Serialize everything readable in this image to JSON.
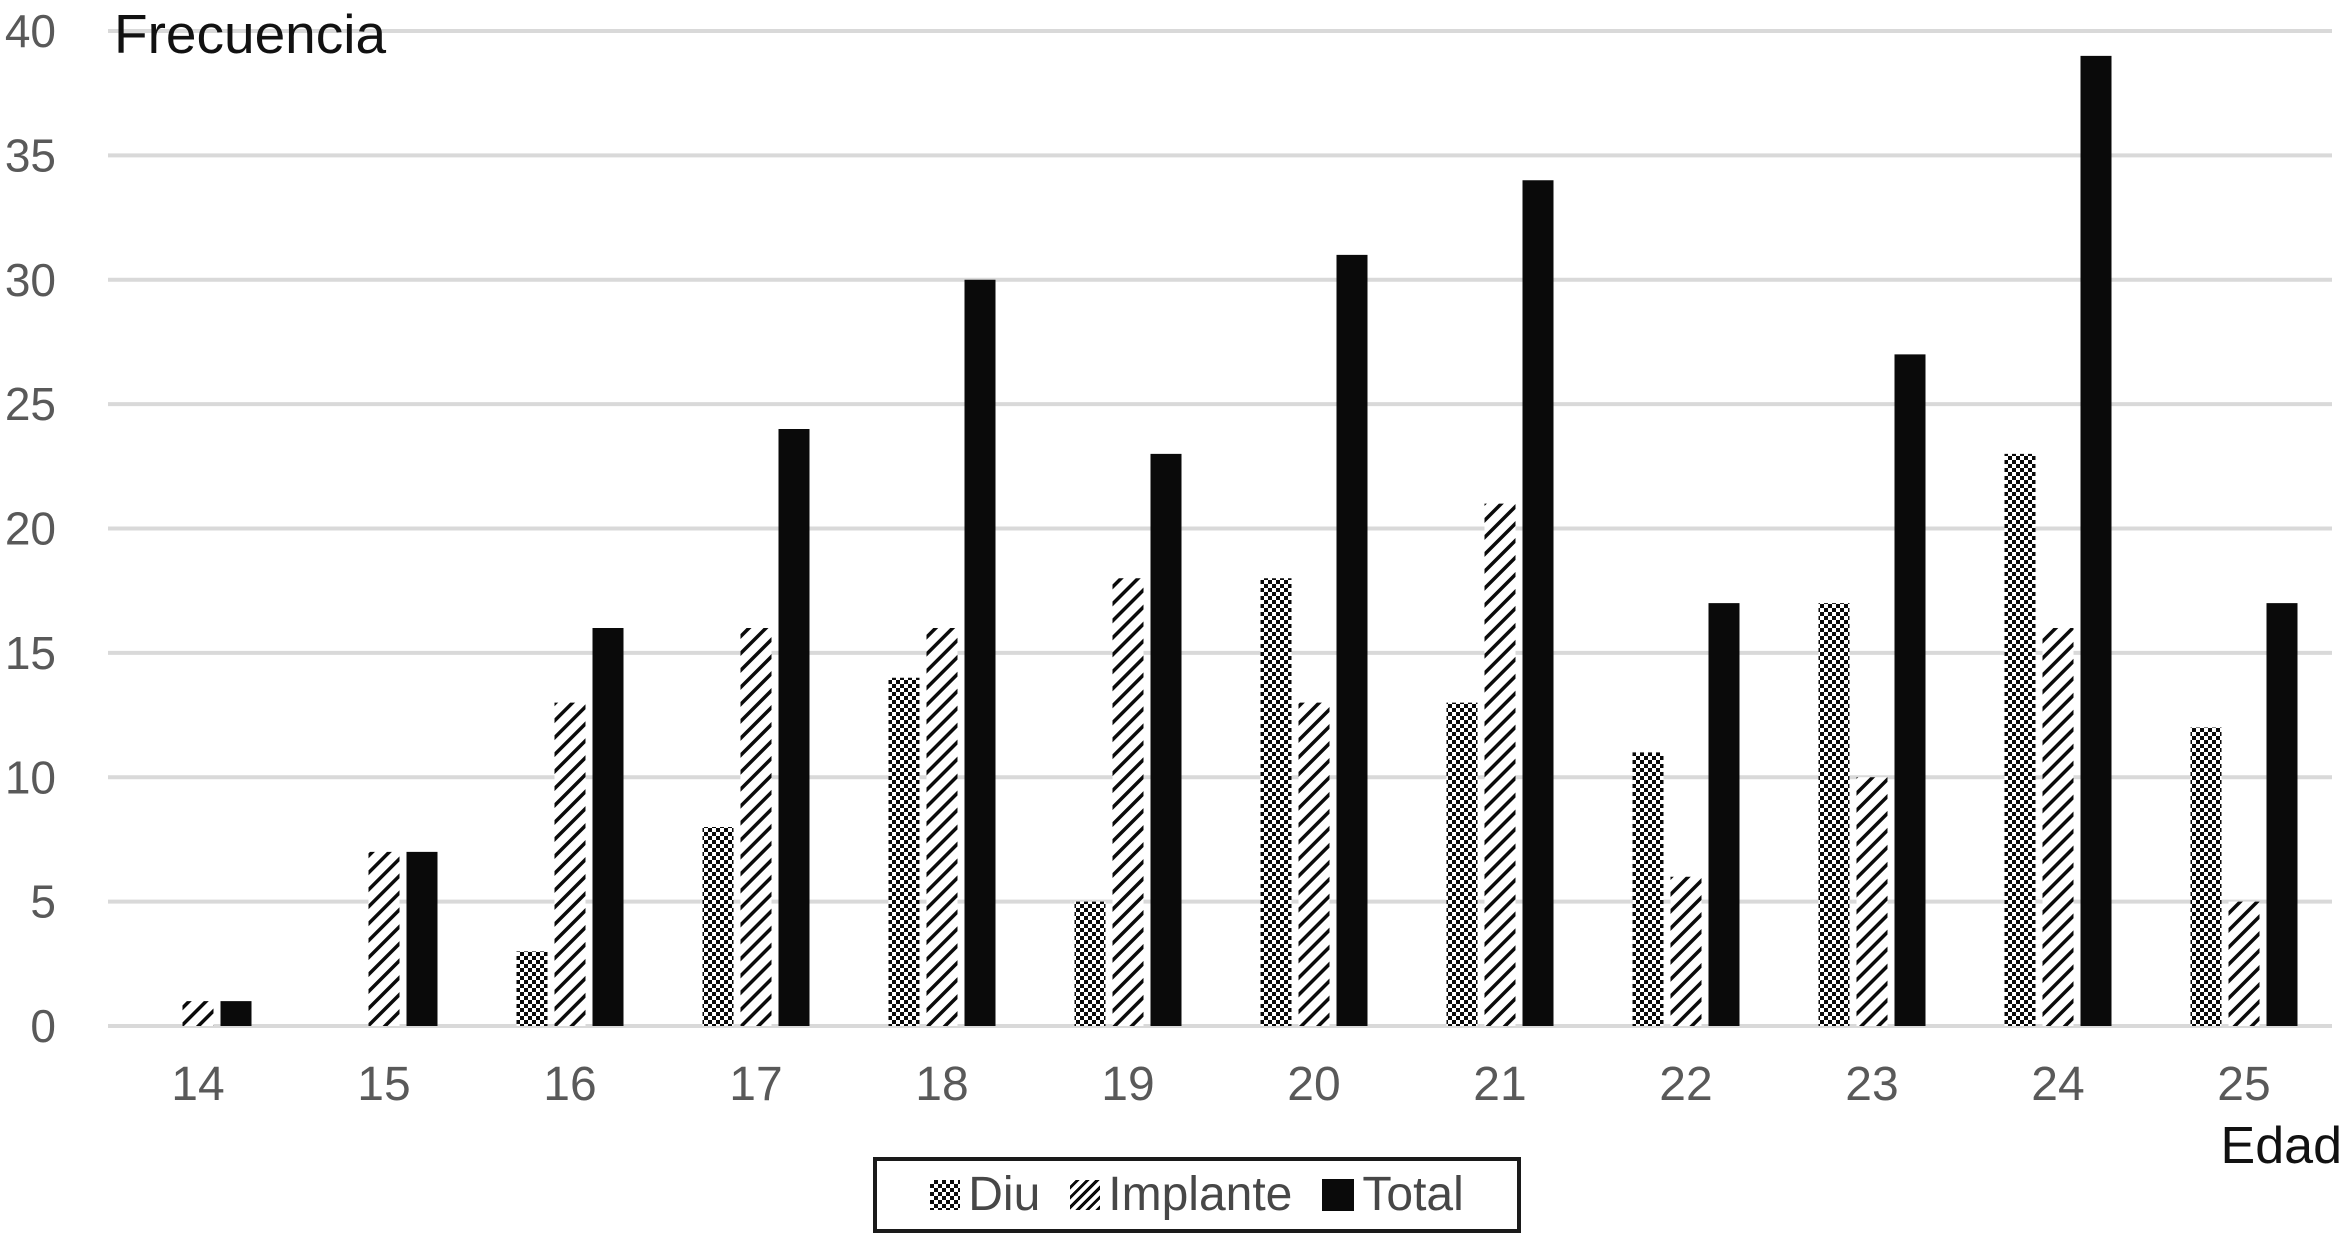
{
  "chart": {
    "title": "Frecuencia",
    "x_axis_title": "Edad"
  },
  "colors": {
    "background": "#ffffff",
    "bar_black": "#0a0a0a",
    "gridline": "#d9d9d9",
    "tick_label": "#595959",
    "title_text": "#111111",
    "legend_text": "#474747",
    "legend_border": "#1a1a1a"
  },
  "chart_data": {
    "type": "bar",
    "title": "Frecuencia",
    "xlabel": "Edad",
    "ylabel": "Frecuencia",
    "categories": [
      14,
      15,
      16,
      17,
      18,
      19,
      20,
      21,
      22,
      23,
      24,
      25
    ],
    "series": [
      {
        "name": "Diu",
        "pattern": "checker",
        "values": [
          0,
          0,
          3,
          8,
          14,
          5,
          18,
          13,
          11,
          17,
          23,
          12
        ]
      },
      {
        "name": "Implante",
        "pattern": "diagonal-hatch",
        "values": [
          1,
          7,
          13,
          16,
          16,
          18,
          13,
          21,
          6,
          10,
          16,
          5
        ]
      },
      {
        "name": "Total",
        "pattern": "solid",
        "values": [
          1,
          7,
          16,
          24,
          30,
          23,
          31,
          34,
          17,
          27,
          39,
          17
        ]
      }
    ],
    "y_ticks": [
      0,
      5,
      10,
      15,
      20,
      25,
      30,
      35,
      40
    ],
    "ylim": [
      0,
      40
    ],
    "grid": true,
    "legend_position": "bottom"
  }
}
